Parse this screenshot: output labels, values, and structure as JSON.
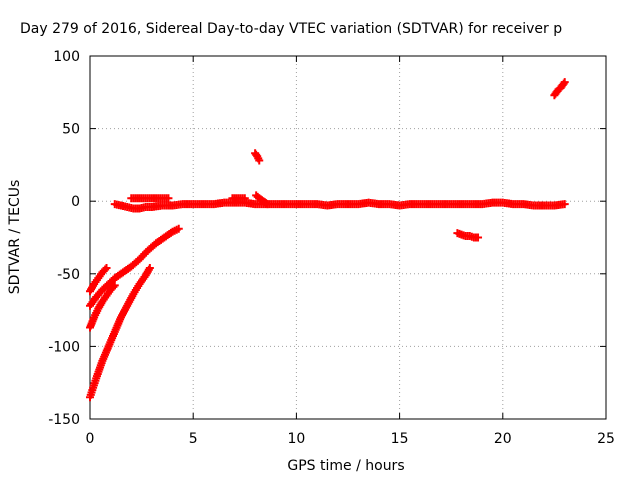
{
  "chart_data": {
    "type": "scatter",
    "title": "Day 279 of 2016, Sidereal Day-to-day VTEC variation (SDTVAR) for receiver p",
    "xlabel": "GPS time / hours",
    "ylabel": "SDTVAR / TECUs",
    "xlim": [
      0,
      25
    ],
    "ylim": [
      -150,
      100
    ],
    "x_ticks": [
      "0",
      "5",
      "10",
      "15",
      "20",
      "25"
    ],
    "y_ticks": [
      "100",
      "50",
      "0",
      "-50",
      "-100",
      "-150"
    ],
    "grid": true,
    "marker": "plus",
    "color": "#ff0000",
    "series": [
      {
        "segments": [
          {
            "x": [
              0.0,
              0.3,
              0.6,
              0.9,
              1.2,
              1.6,
              2.0,
              2.4,
              2.8,
              3.2,
              3.6,
              4.0,
              4.3
            ],
            "y": [
              -72,
              -66,
              -61,
              -57,
              -53,
              -49,
              -45,
              -40,
              -34,
              -29,
              -25,
              -21,
              -19
            ]
          },
          {
            "x": [
              0.0,
              0.2,
              0.4,
              0.6,
              0.8
            ],
            "y": [
              -62,
              -57,
              -53,
              -49,
              -46
            ]
          },
          {
            "x": [
              0.0,
              0.2,
              0.4,
              0.6,
              0.8,
              1.0,
              1.2
            ],
            "y": [
              -87,
              -80,
              -74,
              -69,
              -65,
              -61,
              -58
            ]
          },
          {
            "x": [
              0.0,
              0.3,
              0.6,
              0.9,
              1.2,
              1.5,
              1.8,
              2.1,
              2.4,
              2.7,
              2.9
            ],
            "y": [
              -135,
              -122,
              -110,
              -100,
              -90,
              -80,
              -72,
              -64,
              -57,
              -51,
              -46
            ]
          },
          {
            "x": [
              1.2,
              1.5,
              1.8,
              2.1,
              2.4,
              2.7,
              3.0,
              3.5,
              4.0,
              4.5,
              5.0,
              5.5,
              6.0,
              6.5,
              7.0,
              7.5,
              8.0,
              8.5,
              9.0,
              9.5,
              10.0,
              10.5,
              11.0,
              11.5,
              12.0,
              12.5,
              13.0,
              13.5,
              14.0,
              14.5,
              15.0,
              15.5,
              16.0,
              16.5,
              17.0,
              17.5,
              18.0,
              18.5,
              19.0,
              19.5,
              20.0,
              20.5,
              21.0,
              21.5,
              22.0,
              22.5,
              23.0
            ],
            "y": [
              -2,
              -3,
              -4,
              -5,
              -5,
              -4,
              -4,
              -3,
              -3,
              -2,
              -2,
              -2,
              -2,
              -1,
              -1,
              -1,
              -2,
              -2,
              -2,
              -2,
              -2,
              -2,
              -2,
              -3,
              -2,
              -2,
              -2,
              -1,
              -2,
              -2,
              -3,
              -2,
              -2,
              -2,
              -2,
              -2,
              -2,
              -2,
              -2,
              -1,
              -1,
              -2,
              -2,
              -3,
              -3,
              -3,
              -2
            ]
          },
          {
            "x": [
              2.0,
              2.3,
              2.6,
              2.9,
              3.2,
              3.5,
              3.8
            ],
            "y": [
              2,
              2,
              2,
              2,
              2,
              2,
              2
            ]
          },
          {
            "x": [
              6.9,
              7.1,
              7.3,
              7.5
            ],
            "y": [
              2,
              2,
              2,
              2
            ]
          },
          {
            "x": [
              8.0,
              8.1,
              8.2
            ],
            "y": [
              33,
              31,
              28
            ]
          },
          {
            "x": [
              8.05,
              8.2,
              8.4,
              8.6
            ],
            "y": [
              4,
              2,
              0,
              -2
            ]
          },
          {
            "x": [
              17.8,
              18.0,
              18.2,
              18.4,
              18.6,
              18.8
            ],
            "y": [
              -22,
              -23,
              -24,
              -24,
              -25,
              -25
            ]
          },
          {
            "x": [
              22.5,
              22.6,
              22.7,
              22.8,
              22.9,
              23.0
            ],
            "y": [
              73,
              75,
              77,
              78,
              80,
              82
            ]
          }
        ]
      }
    ]
  }
}
